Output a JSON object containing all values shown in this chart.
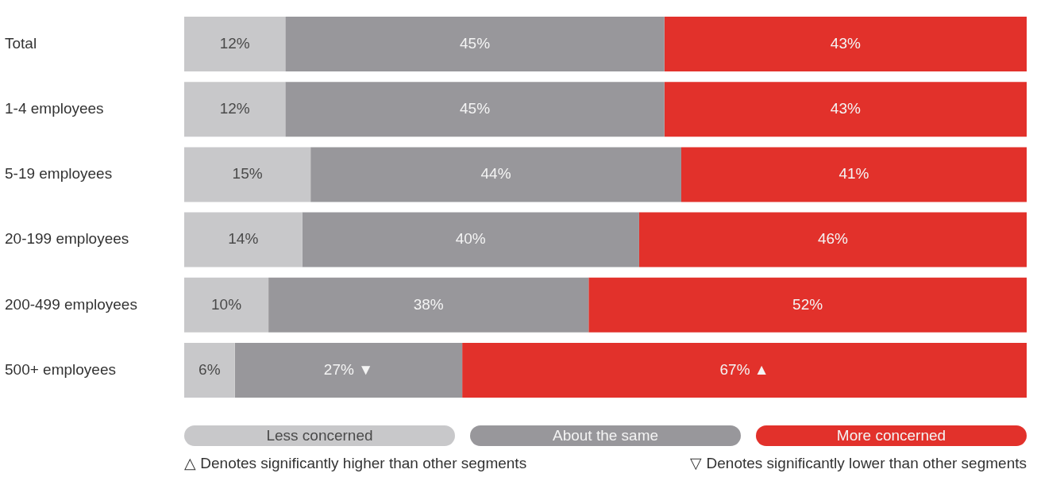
{
  "chart_data": {
    "type": "bar",
    "orientation": "horizontal",
    "stacked": true,
    "categories": [
      "Total",
      "1-4 employees",
      "5-19 employees",
      "20-199 employees",
      "200-499 employees",
      "500+ employees"
    ],
    "series": [
      {
        "name": "Less concerned",
        "color": "#c8c8ca",
        "values": [
          12,
          12,
          15,
          14,
          10,
          6
        ],
        "value_labels": [
          "12%",
          "12%",
          "15%",
          "14%",
          "10%",
          "6%"
        ]
      },
      {
        "name": "About the same",
        "color": "#98979b",
        "values": [
          45,
          45,
          44,
          40,
          38,
          27
        ],
        "value_labels": [
          "45%",
          "45%",
          "44%",
          "40%",
          "38%",
          "27% ▼"
        ]
      },
      {
        "name": "More concerned",
        "color": "#e2312b",
        "values": [
          43,
          43,
          41,
          46,
          52,
          67
        ],
        "value_labels": [
          "43%",
          "43%",
          "41%",
          "46%",
          "52%",
          "67% ▲"
        ]
      }
    ],
    "xlim": [
      0,
      100
    ],
    "tick_labels": "y",
    "grid": false,
    "legend": "bottom",
    "annotations": [
      "△ Denotes significantly higher than other segments",
      "▽ Denotes significantly lower than other segments"
    ]
  }
}
